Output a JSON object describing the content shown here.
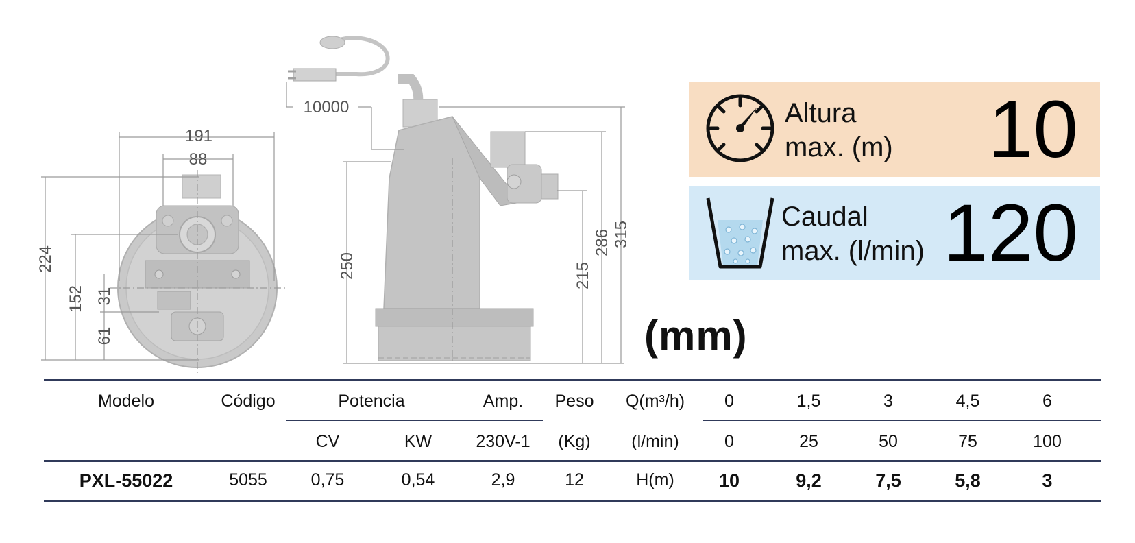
{
  "drawing": {
    "front_dims": [
      "191",
      "88",
      "224",
      "152",
      "31",
      "61"
    ],
    "side_dims": [
      "10000",
      "250",
      "215",
      "286",
      "315"
    ]
  },
  "specs": {
    "height": {
      "label_line1": "Altura",
      "label_line2": "max. (m)",
      "value": "10",
      "icon": "gauge-icon"
    },
    "flow": {
      "label_line1": "Caudal",
      "label_line2": "max. (l/min)",
      "value": "120",
      "icon": "bucket-icon"
    }
  },
  "unit_note": "(mm)",
  "table": {
    "header1": {
      "modelo": "Modelo",
      "codigo": "Código",
      "potencia": "Potencia",
      "amp": "Amp.",
      "peso": "Peso",
      "q": "Q(m³/h)",
      "q_values": [
        "0",
        "1,5",
        "3",
        "4,5",
        "6"
      ]
    },
    "header2": {
      "cv": "CV",
      "kw": "KW",
      "volt": "230V-1",
      "kg": "(Kg)",
      "lmin": "(l/min)",
      "l_values": [
        "0",
        "25",
        "50",
        "75",
        "100"
      ]
    },
    "row": {
      "modelo": "PXL-55022",
      "codigo": "5055",
      "cv": "0,75",
      "kw": "0,54",
      "amp": "2,9",
      "peso": "12",
      "h": "H(m)",
      "h_values": [
        "10",
        "9,2",
        "7,5",
        "5,8",
        "3"
      ]
    }
  },
  "colors": {
    "height_bg": "#f8ddc2",
    "flow_bg": "#d4e9f7",
    "rule": "#303a5a"
  }
}
